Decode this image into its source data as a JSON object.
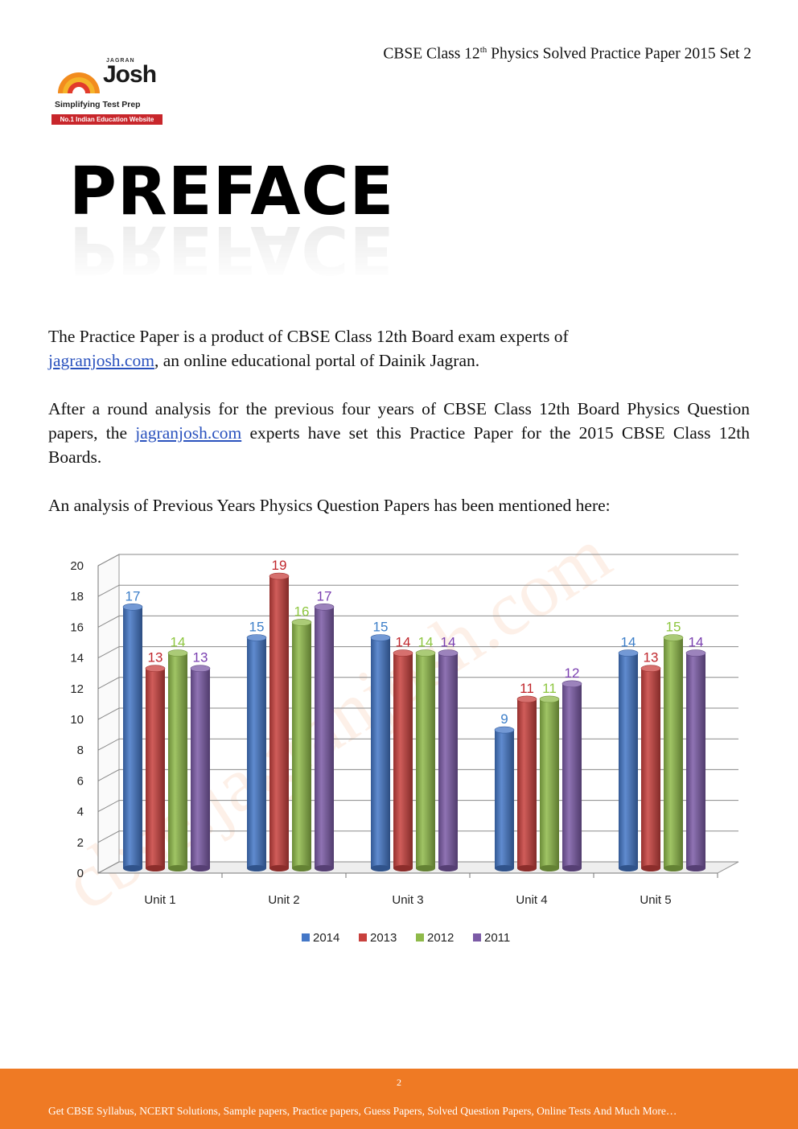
{
  "header": {
    "title_pre": "CBSE Class 12",
    "title_sup": "th",
    "title_post": " Physics Solved Practice Paper 2015 Set 2"
  },
  "logo": {
    "brand_small": "JAGRAN",
    "brand_main": "Josh",
    "tagline": "Simplifying Test Prep",
    "badge": "No.1 Indian Education Website"
  },
  "heading": "PREFACE",
  "paragraphs": {
    "p1_text": "The Practice Paper is a product of CBSE Class 12th Board exam experts of",
    "p1_link": "jagranjosh.com",
    "p1_tail": ", an online educational portal of Dainik Jagran.",
    "p2_head": "After a round analysis for the previous four years of CBSE Class 12th Board Physics Question papers, the ",
    "p2_link": "jagranjosh.com",
    "p2_tail": " experts have set this Practice Paper for the 2015 CBSE Class 12th Boards.",
    "p3_text": "An analysis of Previous Years Physics Question Papers has been mentioned here:"
  },
  "watermark": "cbse.jagranjosh.com",
  "chart_data": {
    "type": "bar",
    "title": "",
    "xlabel": "",
    "ylabel": "",
    "ylim": [
      0,
      20
    ],
    "yticks": [
      0,
      2,
      4,
      6,
      8,
      10,
      12,
      14,
      16,
      18,
      20
    ],
    "categories": [
      "Unit 1",
      "Unit 2",
      "Unit 3",
      "Unit 4",
      "Unit 5"
    ],
    "series": [
      {
        "name": "2014",
        "color": "#4477c7",
        "values": [
          17,
          15,
          15,
          9,
          14
        ]
      },
      {
        "name": "2013",
        "color": "#c8403d",
        "values": [
          13,
          19,
          14,
          11,
          13
        ]
      },
      {
        "name": "2012",
        "color": "#8fba4a",
        "values": [
          14,
          16,
          14,
          11,
          15
        ]
      },
      {
        "name": "2011",
        "color": "#7b5aa6",
        "values": [
          13,
          17,
          14,
          12,
          14
        ]
      }
    ],
    "label_colors": [
      "#3d7fc9",
      "#c0262c",
      "#8dc63f",
      "#7a3fb0"
    ],
    "grid": true,
    "legend_position": "bottom"
  },
  "footer": {
    "page_number": "2",
    "text": "Get CBSE Syllabus, NCERT Solutions, Sample papers, Practice papers, Guess Papers, Solved Question Papers, Online Tests And Much More…"
  }
}
